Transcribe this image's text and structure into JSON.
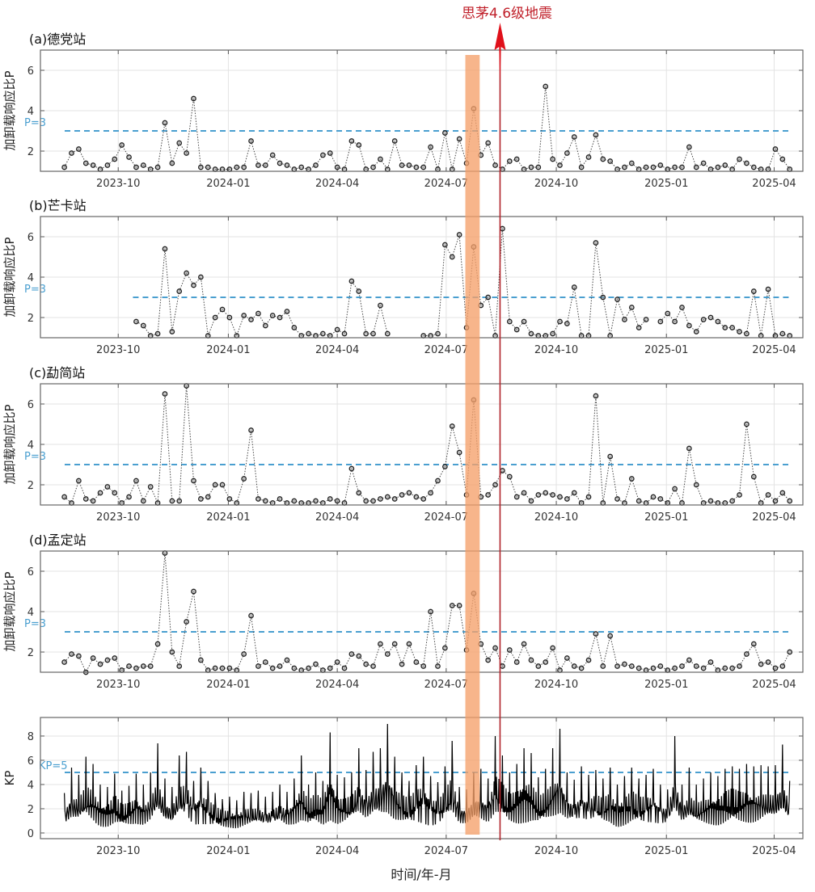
{
  "annotation": {
    "label": "思茅4.6级地震",
    "date": "2024-08-15",
    "color": "#c0202a"
  },
  "highlight_band": {
    "start": "2024-07-17",
    "end": "2024-07-29",
    "color": "#f5a06a"
  },
  "chart_data": {
    "type": "line",
    "xlabel": "时间/年-月",
    "xlim": [
      "2023-07-28",
      "2025-04-25"
    ],
    "xticks": [
      {
        "date": "2023-10-01",
        "label": "2023-10"
      },
      {
        "date": "2024-01-01",
        "label": "2024-01"
      },
      {
        "date": "2024-04-01",
        "label": "2024-04"
      },
      {
        "date": "2024-07-01",
        "label": "2024-07"
      },
      {
        "date": "2024-10-01",
        "label": "2024-10"
      },
      {
        "date": "2025-01-01",
        "label": "2025-01"
      },
      {
        "date": "2025-04-01",
        "label": "2025-04"
      }
    ],
    "grid": true,
    "x": [
      "2023-08-17",
      "2023-08-23",
      "2023-08-29",
      "2023-09-04",
      "2023-09-10",
      "2023-09-16",
      "2023-09-22",
      "2023-09-28",
      "2023-10-04",
      "2023-10-10",
      "2023-10-16",
      "2023-10-22",
      "2023-10-28",
      "2023-11-03",
      "2023-11-09",
      "2023-11-15",
      "2023-11-21",
      "2023-11-27",
      "2023-12-03",
      "2023-12-09",
      "2023-12-15",
      "2023-12-21",
      "2023-12-27",
      "2024-01-02",
      "2024-01-08",
      "2024-01-14",
      "2024-01-20",
      "2024-01-26",
      "2024-02-01",
      "2024-02-07",
      "2024-02-13",
      "2024-02-19",
      "2024-02-25",
      "2024-03-02",
      "2024-03-08",
      "2024-03-14",
      "2024-03-20",
      "2024-03-26",
      "2024-04-01",
      "2024-04-07",
      "2024-04-13",
      "2024-04-19",
      "2024-04-25",
      "2024-05-01",
      "2024-05-07",
      "2024-05-13",
      "2024-05-19",
      "2024-05-25",
      "2024-05-31",
      "2024-06-06",
      "2024-06-12",
      "2024-06-18",
      "2024-06-24",
      "2024-06-30",
      "2024-07-06",
      "2024-07-12",
      "2024-07-18",
      "2024-07-24",
      "2024-07-30",
      "2024-08-05",
      "2024-08-11",
      "2024-08-17",
      "2024-08-23",
      "2024-08-29",
      "2024-09-04",
      "2024-09-10",
      "2024-09-16",
      "2024-09-22",
      "2024-09-28",
      "2024-10-04",
      "2024-10-10",
      "2024-10-16",
      "2024-10-22",
      "2024-10-28",
      "2024-11-03",
      "2024-11-09",
      "2024-11-15",
      "2024-11-21",
      "2024-11-27",
      "2024-12-03",
      "2024-12-09",
      "2024-12-15",
      "2024-12-21",
      "2024-12-27",
      "2025-01-02",
      "2025-01-08",
      "2025-01-14",
      "2025-01-20",
      "2025-01-26",
      "2025-02-01",
      "2025-02-07",
      "2025-02-13",
      "2025-02-19",
      "2025-02-25",
      "2025-03-03",
      "2025-03-09",
      "2025-03-15",
      "2025-03-21",
      "2025-03-27",
      "2025-04-02",
      "2025-04-08",
      "2025-04-14"
    ],
    "panels": [
      {
        "title": "(a)德党站",
        "ylabel": "加卸载响应比P",
        "ylim": [
          1,
          7
        ],
        "yticks": [
          2,
          4,
          6
        ],
        "threshold": {
          "value": 3,
          "label": "P=3",
          "color": "#4a9fd0"
        },
        "values": [
          1.2,
          1.9,
          2.1,
          1.4,
          1.3,
          1.1,
          1.3,
          1.6,
          2.3,
          1.7,
          1.2,
          1.3,
          1.1,
          1.2,
          3.4,
          1.4,
          2.4,
          1.9,
          4.6,
          1.2,
          1.2,
          1.1,
          1.1,
          1.1,
          1.2,
          1.2,
          2.5,
          1.3,
          1.3,
          1.8,
          1.4,
          1.3,
          1.1,
          1.2,
          1.1,
          1.3,
          1.8,
          1.9,
          1.2,
          1.1,
          2.5,
          2.3,
          1.1,
          1.2,
          1.6,
          1.1,
          2.5,
          1.3,
          1.3,
          1.2,
          1.2,
          2.2,
          1.1,
          2.9,
          1.1,
          2.6,
          1.4,
          4.1,
          1.8,
          2.4,
          1.3,
          1.1,
          1.5,
          1.6,
          1.1,
          1.2,
          1.2,
          5.2,
          1.6,
          1.3,
          1.9,
          2.7,
          1.2,
          1.7,
          2.8,
          1.6,
          1.5,
          1.1,
          1.2,
          1.4,
          1.1,
          1.2,
          1.2,
          1.3,
          1.1,
          1.2,
          1.2,
          2.2,
          1.2,
          1.4,
          1.1,
          1.2,
          1.3,
          1.1,
          1.6,
          1.4,
          1.2,
          1.1,
          1.1,
          2.1,
          1.6,
          1.1
        ]
      },
      {
        "title": "(b)芒卡站",
        "ylabel": "加卸载响应比P",
        "ylim": [
          1,
          7
        ],
        "yticks": [
          2,
          4,
          6
        ],
        "threshold": {
          "value": 3,
          "label": "P=3",
          "color": "#4a9fd0"
        },
        "values": [
          null,
          null,
          null,
          null,
          null,
          null,
          null,
          null,
          null,
          null,
          1.8,
          1.6,
          1.1,
          1.2,
          5.4,
          1.3,
          3.3,
          4.2,
          3.6,
          4.0,
          1.1,
          2.0,
          2.4,
          2.0,
          1.1,
          2.1,
          1.9,
          2.2,
          1.6,
          2.1,
          2.0,
          2.3,
          1.5,
          1.1,
          1.2,
          1.1,
          1.2,
          1.1,
          1.4,
          1.2,
          3.8,
          3.3,
          1.2,
          1.2,
          2.6,
          1.2,
          null,
          null,
          null,
          null,
          1.1,
          1.1,
          1.2,
          5.6,
          5.0,
          6.1,
          1.5,
          5.5,
          2.6,
          3.0,
          1.1,
          6.4,
          1.8,
          1.4,
          1.8,
          1.2,
          1.1,
          1.1,
          1.2,
          1.8,
          1.7,
          3.5,
          1.1,
          1.1,
          5.7,
          3.0,
          1.1,
          2.9,
          1.9,
          2.5,
          1.5,
          1.9,
          null,
          1.8,
          2.2,
          1.8,
          2.5,
          1.6,
          1.3,
          1.9,
          2.0,
          1.8,
          1.5,
          1.5,
          1.3,
          1.2,
          3.3,
          1.1,
          3.4,
          1.1,
          1.2,
          1.1
        ]
      },
      {
        "title": "(c)勐简站",
        "ylabel": "加卸载响应比P",
        "ylim": [
          1,
          7
        ],
        "yticks": [
          2,
          4,
          6
        ],
        "threshold": {
          "value": 3,
          "label": "P=3",
          "color": "#4a9fd0"
        },
        "values": [
          1.4,
          1.1,
          2.2,
          1.3,
          1.2,
          1.6,
          1.9,
          1.6,
          1.1,
          1.4,
          2.2,
          1.2,
          1.9,
          1.1,
          6.5,
          1.2,
          1.2,
          6.9,
          2.2,
          1.3,
          1.4,
          2.0,
          2.0,
          1.3,
          1.1,
          2.3,
          4.7,
          1.3,
          1.2,
          1.1,
          1.3,
          1.1,
          1.2,
          1.1,
          1.1,
          1.2,
          1.1,
          1.3,
          1.2,
          1.1,
          2.8,
          1.6,
          1.2,
          1.2,
          1.3,
          1.4,
          1.3,
          1.5,
          1.6,
          1.4,
          1.3,
          1.6,
          2.2,
          2.9,
          4.9,
          3.6,
          1.5,
          6.2,
          1.4,
          1.5,
          2.0,
          2.7,
          2.4,
          1.4,
          1.6,
          1.2,
          1.5,
          1.6,
          1.5,
          1.4,
          1.3,
          1.6,
          1.1,
          1.4,
          6.4,
          1.1,
          3.4,
          1.3,
          1.1,
          2.3,
          1.2,
          1.1,
          1.4,
          1.3,
          1.1,
          1.8,
          1.1,
          3.8,
          2.0,
          1.1,
          1.2,
          1.1,
          1.1,
          1.2,
          1.5,
          5.0,
          2.4,
          1.1,
          1.5,
          1.2,
          1.6,
          1.2
        ]
      },
      {
        "title": "(d)孟定站",
        "ylabel": "加卸载响应比P",
        "ylim": [
          1,
          7
        ],
        "yticks": [
          2,
          4,
          6
        ],
        "threshold": {
          "value": 3,
          "label": "P=3",
          "color": "#4a9fd0"
        },
        "values": [
          1.5,
          1.9,
          1.8,
          1.0,
          1.7,
          1.4,
          1.6,
          1.7,
          1.1,
          1.3,
          1.2,
          1.3,
          1.3,
          2.4,
          6.9,
          2.0,
          1.3,
          3.5,
          5.0,
          1.6,
          1.1,
          1.2,
          1.2,
          1.2,
          1.1,
          1.9,
          3.8,
          1.3,
          1.5,
          1.2,
          1.3,
          1.6,
          1.2,
          1.1,
          1.2,
          1.4,
          1.1,
          1.2,
          1.5,
          1.2,
          1.9,
          1.8,
          1.4,
          1.3,
          2.4,
          1.9,
          2.4,
          1.4,
          2.4,
          1.5,
          1.3,
          4.0,
          1.3,
          2.2,
          4.3,
          4.3,
          2.1,
          4.9,
          2.4,
          1.6,
          2.2,
          1.3,
          2.1,
          1.5,
          2.4,
          1.6,
          1.3,
          1.5,
          2.2,
          1.1,
          1.7,
          1.3,
          1.2,
          1.6,
          2.9,
          1.3,
          2.8,
          1.3,
          1.4,
          1.3,
          1.2,
          1.1,
          1.2,
          1.3,
          1.1,
          1.2,
          1.3,
          1.6,
          1.3,
          1.2,
          1.5,
          1.1,
          1.2,
          1.2,
          1.3,
          1.9,
          2.4,
          1.4,
          1.5,
          1.2,
          1.3,
          2.0
        ]
      },
      {
        "title": "",
        "ylabel": "KP",
        "ylim": [
          -0.47,
          9.53
        ],
        "yticks": [
          0,
          2,
          4,
          6,
          8
        ],
        "threshold": {
          "value": 5,
          "label": "KP=5",
          "color": "#4a9fd0"
        },
        "values": [
          3.3,
          5.4,
          4.8,
          6.3,
          5.7,
          4.0,
          3.8,
          4.9,
          3.5,
          3.9,
          4.9,
          4.0,
          5.0,
          7.4,
          4.5,
          3.8,
          6.4,
          6.7,
          4.3,
          5.4,
          4.3,
          3.3,
          2.8,
          3.0,
          2.7,
          3.4,
          3.3,
          3.5,
          3.0,
          3.4,
          4.0,
          3.4,
          4.5,
          6.4,
          4.0,
          5.0,
          4.3,
          8.3,
          4.8,
          4.6,
          5.0,
          7.0,
          5.2,
          6.7,
          7.0,
          9.0,
          6.3,
          5.0,
          4.3,
          5.6,
          6.3,
          4.7,
          4.2,
          5.5,
          7.6,
          3.8,
          3.6,
          5.0,
          5.3,
          4.5,
          8.0,
          6.4,
          5.0,
          5.7,
          7.0,
          6.6,
          4.6,
          5.3,
          7.0,
          8.6,
          5.0,
          4.4,
          5.5,
          4.8,
          5.2,
          4.5,
          5.4,
          4.0,
          4.7,
          5.4,
          4.5,
          4.8,
          5.3,
          4.0,
          3.6,
          8.0,
          4.0,
          5.4,
          4.0,
          4.5,
          5.0,
          4.7,
          5.3,
          5.5,
          5.3,
          5.7,
          5.5,
          5.6,
          5.5,
          5.6,
          7.3,
          4.3
        ]
      }
    ]
  }
}
